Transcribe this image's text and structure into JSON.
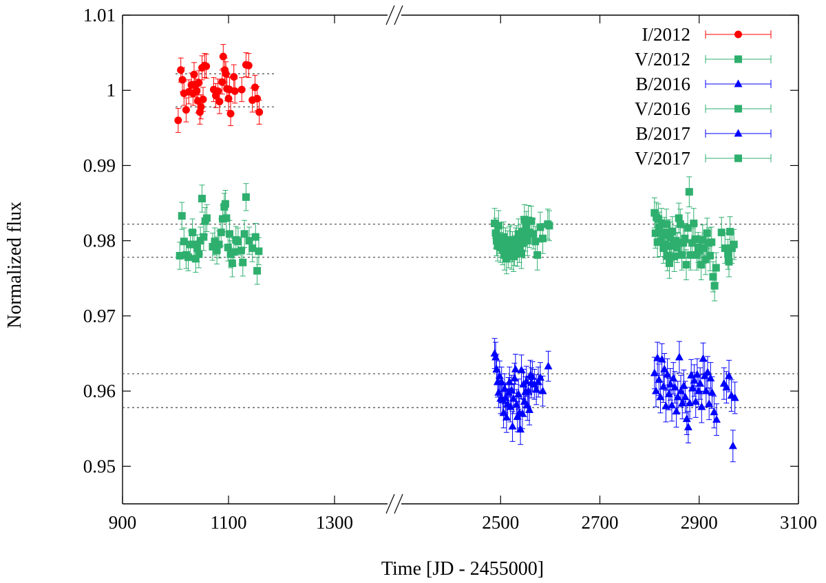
{
  "chart_data": {
    "type": "scatter",
    "xlabel": "Time [JD - 2455000]",
    "ylabel": "Normalized flux",
    "grid": false,
    "legend_position": "top-right",
    "broken_x_axis": true,
    "x_segments": [
      {
        "range": [
          900,
          1400
        ],
        "ticks": [
          900,
          1100,
          1300
        ]
      },
      {
        "range": [
          2300,
          3100
        ],
        "ticks": [
          2500,
          2700,
          2900,
          3100
        ]
      }
    ],
    "ylim": [
      0.945,
      1.01
    ],
    "yticks": [
      {
        "value": 0.95,
        "label": "0.95"
      },
      {
        "value": 0.96,
        "label": "0.96"
      },
      {
        "value": 0.97,
        "label": "0.97"
      },
      {
        "value": 0.98,
        "label": "0.98"
      },
      {
        "value": 0.99,
        "label": "0.99"
      },
      {
        "value": 1.0,
        "label": "1"
      },
      {
        "value": 1.01,
        "label": "1.01"
      }
    ],
    "reference_lines": [
      {
        "y": 1.0022,
        "x": [
          1000,
          1190
        ]
      },
      {
        "y": 0.9978,
        "x": [
          1000,
          1190
        ]
      },
      {
        "y": 0.9822,
        "x": [
          900,
          3100
        ]
      },
      {
        "y": 0.9778,
        "x": [
          900,
          3100
        ]
      },
      {
        "y": 0.9623,
        "x": [
          900,
          3100
        ]
      },
      {
        "y": 0.9578,
        "x": [
          900,
          3100
        ]
      }
    ],
    "series": [
      {
        "name": "I/2012",
        "marker": "circle",
        "color": "#ff0000",
        "err": 0.0016,
        "points": [
          [
            1005,
            0.996
          ],
          [
            1010,
            1.0027
          ],
          [
            1013,
            1.0014
          ],
          [
            1016,
            0.9996
          ],
          [
            1020,
            0.9974
          ],
          [
            1025,
            0.9998
          ],
          [
            1030,
            1.0007
          ],
          [
            1033,
            0.9996
          ],
          [
            1035,
            1.0021
          ],
          [
            1037,
            1.0007
          ],
          [
            1040,
            0.9999
          ],
          [
            1042,
            0.9986
          ],
          [
            1044,
            1.001
          ],
          [
            1046,
            0.9971
          ],
          [
            1048,
            0.9978
          ],
          [
            1050,
            1.003
          ],
          [
            1052,
            0.9988
          ],
          [
            1055,
            1.0033
          ],
          [
            1058,
            1.0032
          ],
          [
            1072,
            1.0001
          ],
          [
            1076,
            0.9993
          ],
          [
            1080,
            0.9999
          ],
          [
            1083,
            0.9985
          ],
          [
            1088,
            1.0011
          ],
          [
            1090,
            1.0045
          ],
          [
            1093,
            1.0027
          ],
          [
            1095,
            1.0022
          ],
          [
            1097,
            1.0002
          ],
          [
            1100,
            0.9989
          ],
          [
            1102,
            1.0001
          ],
          [
            1104,
            0.9969
          ],
          [
            1110,
            1.0018
          ],
          [
            1112,
            0.9999
          ],
          [
            1125,
            1.0001
          ],
          [
            1133,
            1.0034
          ],
          [
            1138,
            1.0033
          ],
          [
            1145,
            0.9987
          ],
          [
            1150,
            1.0004
          ],
          [
            1154,
            0.9989
          ],
          [
            1158,
            0.9971
          ]
        ]
      },
      {
        "name": "V/2012",
        "marker": "square",
        "color": "#2eaf6e",
        "err": 0.0018,
        "points": [
          [
            1008,
            0.978
          ],
          [
            1012,
            0.9833
          ],
          [
            1016,
            0.9799
          ],
          [
            1020,
            0.9781
          ],
          [
            1024,
            0.9778
          ],
          [
            1028,
            0.9795
          ],
          [
            1032,
            0.9811
          ],
          [
            1035,
            0.9795
          ],
          [
            1038,
            0.9776
          ],
          [
            1041,
            0.979
          ],
          [
            1044,
            0.9782
          ],
          [
            1047,
            0.98
          ],
          [
            1050,
            0.9856
          ],
          [
            1053,
            0.9805
          ],
          [
            1056,
            0.9826
          ],
          [
            1059,
            0.983
          ],
          [
            1070,
            0.9792
          ],
          [
            1074,
            0.9799
          ],
          [
            1078,
            0.9787
          ],
          [
            1082,
            0.9795
          ],
          [
            1086,
            0.9811
          ],
          [
            1089,
            0.9829
          ],
          [
            1092,
            0.9845
          ],
          [
            1094,
            0.9849
          ],
          [
            1096,
            0.983
          ],
          [
            1099,
            0.9791
          ],
          [
            1102,
            0.9809
          ],
          [
            1104,
            0.9782
          ],
          [
            1107,
            0.977
          ],
          [
            1110,
            0.9785
          ],
          [
            1114,
            0.9801
          ],
          [
            1118,
            0.9799
          ],
          [
            1124,
            0.9787
          ],
          [
            1127,
            0.9771
          ],
          [
            1130,
            0.9809
          ],
          [
            1133,
            0.9858
          ],
          [
            1139,
            0.98
          ],
          [
            1145,
            0.979
          ],
          [
            1151,
            0.9805
          ],
          [
            1154,
            0.976
          ],
          [
            1157,
            0.9786
          ]
        ]
      },
      {
        "name": "B/2016",
        "marker": "triangle",
        "color": "#0000ff",
        "err": 0.002,
        "points": [
          [
            2488,
            0.965
          ],
          [
            2490,
            0.9645
          ],
          [
            2492,
            0.9629
          ],
          [
            2494,
            0.9612
          ],
          [
            2496,
            0.9598
          ],
          [
            2498,
            0.962
          ],
          [
            2500,
            0.959
          ],
          [
            2502,
            0.9612
          ],
          [
            2504,
            0.9588
          ],
          [
            2506,
            0.9571
          ],
          [
            2508,
            0.9603
          ],
          [
            2510,
            0.9591
          ],
          [
            2512,
            0.9565
          ],
          [
            2514,
            0.9583
          ],
          [
            2516,
            0.9598
          ],
          [
            2518,
            0.9612
          ],
          [
            2520,
            0.9579
          ],
          [
            2522,
            0.9601
          ],
          [
            2524,
            0.9553
          ],
          [
            2526,
            0.959
          ],
          [
            2528,
            0.9617
          ],
          [
            2530,
            0.9629
          ],
          [
            2532,
            0.9582
          ],
          [
            2534,
            0.9566
          ],
          [
            2536,
            0.9596
          ],
          [
            2538,
            0.9571
          ],
          [
            2540,
            0.9549
          ],
          [
            2542,
            0.9628
          ],
          [
            2544,
            0.957
          ],
          [
            2546,
            0.9609
          ],
          [
            2548,
            0.9586
          ],
          [
            2550,
            0.9599
          ],
          [
            2552,
            0.9613
          ],
          [
            2554,
            0.9581
          ],
          [
            2556,
            0.96
          ],
          [
            2558,
            0.9575
          ],
          [
            2560,
            0.9621
          ],
          [
            2562,
            0.9611
          ],
          [
            2564,
            0.9619
          ],
          [
            2568,
            0.9609
          ],
          [
            2572,
            0.9602
          ],
          [
            2576,
            0.9612
          ],
          [
            2580,
            0.9618
          ],
          [
            2585,
            0.96
          ],
          [
            2596,
            0.9633
          ]
        ]
      },
      {
        "name": "V/2016",
        "marker": "square",
        "color": "#2eaf6e",
        "err": 0.002,
        "points": [
          [
            2488,
            0.9823
          ],
          [
            2490,
            0.981
          ],
          [
            2492,
            0.98
          ],
          [
            2494,
            0.9793
          ],
          [
            2496,
            0.982
          ],
          [
            2498,
            0.9803
          ],
          [
            2500,
            0.9791
          ],
          [
            2502,
            0.9798
          ],
          [
            2504,
            0.9788
          ],
          [
            2506,
            0.9805
          ],
          [
            2508,
            0.9781
          ],
          [
            2510,
            0.9797
          ],
          [
            2512,
            0.9776
          ],
          [
            2514,
            0.9793
          ],
          [
            2516,
            0.9784
          ],
          [
            2518,
            0.9799
          ],
          [
            2520,
            0.9801
          ],
          [
            2522,
            0.9782
          ],
          [
            2524,
            0.9792
          ],
          [
            2526,
            0.9779
          ],
          [
            2528,
            0.9787
          ],
          [
            2530,
            0.9797
          ],
          [
            2532,
            0.98
          ],
          [
            2534,
            0.9786
          ],
          [
            2536,
            0.9809
          ],
          [
            2538,
            0.9791
          ],
          [
            2540,
            0.9802
          ],
          [
            2542,
            0.9783
          ],
          [
            2544,
            0.9812
          ],
          [
            2546,
            0.9797
          ],
          [
            2548,
            0.9828
          ],
          [
            2550,
            0.9806
          ],
          [
            2552,
            0.9819
          ],
          [
            2554,
            0.98
          ],
          [
            2556,
            0.9827
          ],
          [
            2558,
            0.9811
          ],
          [
            2562,
            0.9826
          ],
          [
            2566,
            0.9809
          ],
          [
            2570,
            0.9799
          ],
          [
            2574,
            0.9781
          ],
          [
            2580,
            0.9818
          ],
          [
            2585,
            0.9803
          ],
          [
            2595,
            0.9822
          ],
          [
            2598,
            0.982
          ]
        ]
      },
      {
        "name": "B/2017",
        "marker": "triangle",
        "color": "#0000ff",
        "err": 0.0021,
        "points": [
          [
            2810,
            0.9624
          ],
          [
            2813,
            0.96
          ],
          [
            2816,
            0.9644
          ],
          [
            2819,
            0.9615
          ],
          [
            2822,
            0.9592
          ],
          [
            2825,
            0.9642
          ],
          [
            2828,
            0.9606
          ],
          [
            2830,
            0.9629
          ],
          [
            2833,
            0.958
          ],
          [
            2836,
            0.9622
          ],
          [
            2839,
            0.9596
          ],
          [
            2842,
            0.9609
          ],
          [
            2845,
            0.9581
          ],
          [
            2848,
            0.9617
          ],
          [
            2851,
            0.9605
          ],
          [
            2854,
            0.9573
          ],
          [
            2857,
            0.9592
          ],
          [
            2860,
            0.9645
          ],
          [
            2863,
            0.96
          ],
          [
            2866,
            0.9584
          ],
          [
            2869,
            0.9607
          ],
          [
            2872,
            0.9592
          ],
          [
            2875,
            0.9563
          ],
          [
            2878,
            0.9552
          ],
          [
            2881,
            0.9584
          ],
          [
            2884,
            0.9621
          ],
          [
            2887,
            0.9604
          ],
          [
            2890,
            0.9614
          ],
          [
            2893,
            0.9586
          ],
          [
            2896,
            0.9622
          ],
          [
            2899,
            0.96
          ],
          [
            2902,
            0.961
          ],
          [
            2905,
            0.9579
          ],
          [
            2908,
            0.9643
          ],
          [
            2911,
            0.962
          ],
          [
            2914,
            0.96
          ],
          [
            2917,
            0.9625
          ],
          [
            2920,
            0.9583
          ],
          [
            2923,
            0.9617
          ],
          [
            2926,
            0.9598
          ],
          [
            2930,
            0.9572
          ],
          [
            2935,
            0.9562
          ],
          [
            2950,
            0.961
          ],
          [
            2955,
            0.9605
          ],
          [
            2960,
            0.962
          ],
          [
            2965,
            0.9594
          ],
          [
            2968,
            0.9527
          ],
          [
            2972,
            0.9591
          ]
        ]
      },
      {
        "name": "V/2017",
        "marker": "square",
        "color": "#2eaf6e",
        "err": 0.002,
        "points": [
          [
            2810,
            0.9837
          ],
          [
            2812,
            0.981
          ],
          [
            2814,
            0.9831
          ],
          [
            2816,
            0.9798
          ],
          [
            2818,
            0.9829
          ],
          [
            2820,
            0.9818
          ],
          [
            2822,
            0.9799
          ],
          [
            2824,
            0.9823
          ],
          [
            2826,
            0.9808
          ],
          [
            2828,
            0.979
          ],
          [
            2830,
            0.9811
          ],
          [
            2832,
            0.9795
          ],
          [
            2834,
            0.9822
          ],
          [
            2836,
            0.978
          ],
          [
            2838,
            0.9808
          ],
          [
            2840,
            0.977
          ],
          [
            2842,
            0.9805
          ],
          [
            2844,
            0.9793
          ],
          [
            2846,
            0.9812
          ],
          [
            2848,
            0.9797
          ],
          [
            2850,
            0.9779
          ],
          [
            2853,
            0.98
          ],
          [
            2856,
            0.9791
          ],
          [
            2859,
            0.983
          ],
          [
            2862,
            0.9822
          ],
          [
            2865,
            0.9781
          ],
          [
            2868,
            0.9797
          ],
          [
            2871,
            0.9803
          ],
          [
            2874,
            0.9768
          ],
          [
            2877,
            0.9817
          ],
          [
            2880,
            0.9865
          ],
          [
            2883,
            0.9781
          ],
          [
            2886,
            0.9797
          ],
          [
            2889,
            0.9823
          ],
          [
            2892,
            0.9802
          ],
          [
            2895,
            0.9781
          ],
          [
            2898,
            0.9791
          ],
          [
            2901,
            0.9787
          ],
          [
            2904,
            0.9768
          ],
          [
            2907,
            0.9801
          ],
          [
            2910,
            0.979
          ],
          [
            2913,
            0.9775
          ],
          [
            2916,
            0.981
          ],
          [
            2919,
            0.9797
          ],
          [
            2922,
            0.978
          ],
          [
            2925,
            0.9798
          ],
          [
            2928,
            0.9752
          ],
          [
            2931,
            0.974
          ],
          [
            2934,
            0.9764
          ],
          [
            2945,
            0.9811
          ],
          [
            2952,
            0.979
          ],
          [
            2958,
            0.9782
          ],
          [
            2960,
            0.9772
          ],
          [
            2962,
            0.9812
          ],
          [
            2966,
            0.979
          ],
          [
            2970,
            0.9795
          ]
        ]
      }
    ]
  }
}
